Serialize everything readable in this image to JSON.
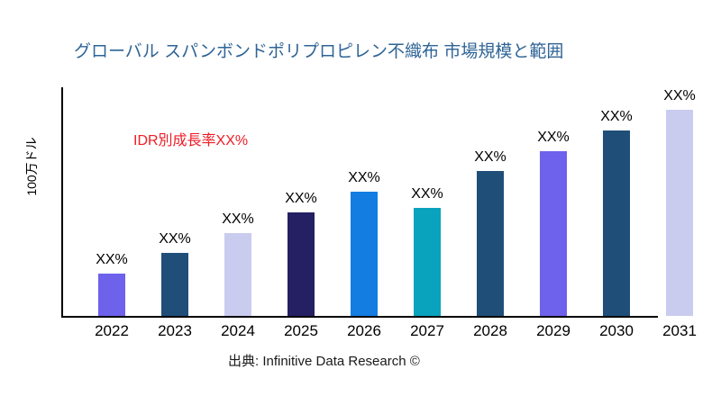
{
  "header": {
    "title": "グローバル スパンボンドポリプロピレン不織布 市場規模と範囲"
  },
  "annotation": {
    "text": "IDR別成長率XX%",
    "color": "#EE1C25"
  },
  "axes": {
    "y_label": "100万ドル"
  },
  "footer": {
    "source": "出典: Infinitive Data Research ©"
  },
  "colors": {
    "title_text": "#2F6496",
    "axis_line": "#000000",
    "purple": "#6E61EC",
    "steel_blue": "#1F4E79",
    "lavender": "#C9CBEF",
    "dark_navy": "#251F63",
    "bright_blue": "#137DE2",
    "teal": "#0AA3BE"
  },
  "chart_data": {
    "type": "bar",
    "title": "グローバル スパンボンドポリプロピレン不織布 市場規模と範囲",
    "xlabel": "",
    "ylabel": "100万ドル",
    "annotation": "IDR別成長率XX%",
    "legend": false,
    "grid": false,
    "categories": [
      "2022",
      "2023",
      "2024",
      "2025",
      "2026",
      "2027",
      "2028",
      "2029",
      "2030",
      "2031"
    ],
    "value_labels": [
      "XX%",
      "XX%",
      "XX%",
      "XX%",
      "XX%",
      "XX%",
      "XX%",
      "XX%",
      "XX%",
      "XX%"
    ],
    "values_pct_of_plot_height": [
      18.5,
      27.6,
      36.2,
      45.3,
      54.3,
      47.2,
      63.4,
      72.0,
      81.1,
      90.2
    ],
    "bar_colors": [
      "#6E61EC",
      "#1F4E79",
      "#C9CBEF",
      "#251F63",
      "#137DE2",
      "#0AA3BE",
      "#1F4E79",
      "#6E61EC",
      "#1F4E79",
      "#C9CBEF"
    ]
  }
}
